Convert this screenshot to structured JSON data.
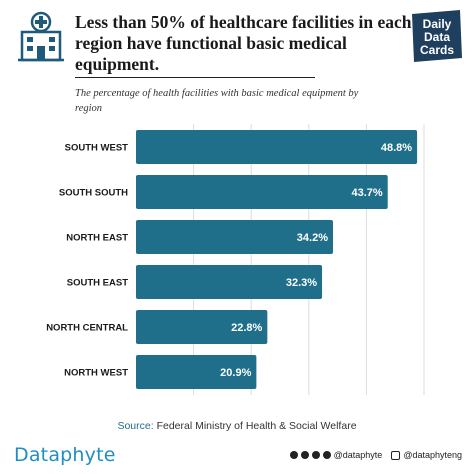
{
  "header": {
    "title": "Less than 50% of healthcare facilities in each region have functional basic medical equipment.",
    "subtitle": "The percentage of health facilities with basic medical equipment by region",
    "icon": "hospital-icon",
    "brand_logo": [
      "Daily",
      "Data",
      "Cards"
    ]
  },
  "colors": {
    "bar": "#1f6f8b",
    "accent": "#1f8fc0",
    "icon": "#1f5a7a"
  },
  "chart_data": {
    "type": "bar",
    "orientation": "horizontal",
    "categories": [
      "SOUTH WEST",
      "SOUTH SOUTH",
      "NORTH EAST",
      "SOUTH EAST",
      "NORTH CENTRAL",
      "NORTH WEST"
    ],
    "values": [
      48.8,
      43.7,
      34.2,
      32.3,
      22.8,
      20.9
    ],
    "value_labels": [
      "48.8%",
      "43.7%",
      "34.2%",
      "32.3%",
      "22.8%",
      "20.9%"
    ],
    "xlim": [
      0,
      50
    ],
    "grid": true
  },
  "footer": {
    "source_label": "Source:",
    "source_text": "Federal Ministry of Health & Social Welfare",
    "logo": "Dataphyte",
    "social_handle_1": "@dataphyte",
    "social_handle_2": "@dataphyteng"
  }
}
